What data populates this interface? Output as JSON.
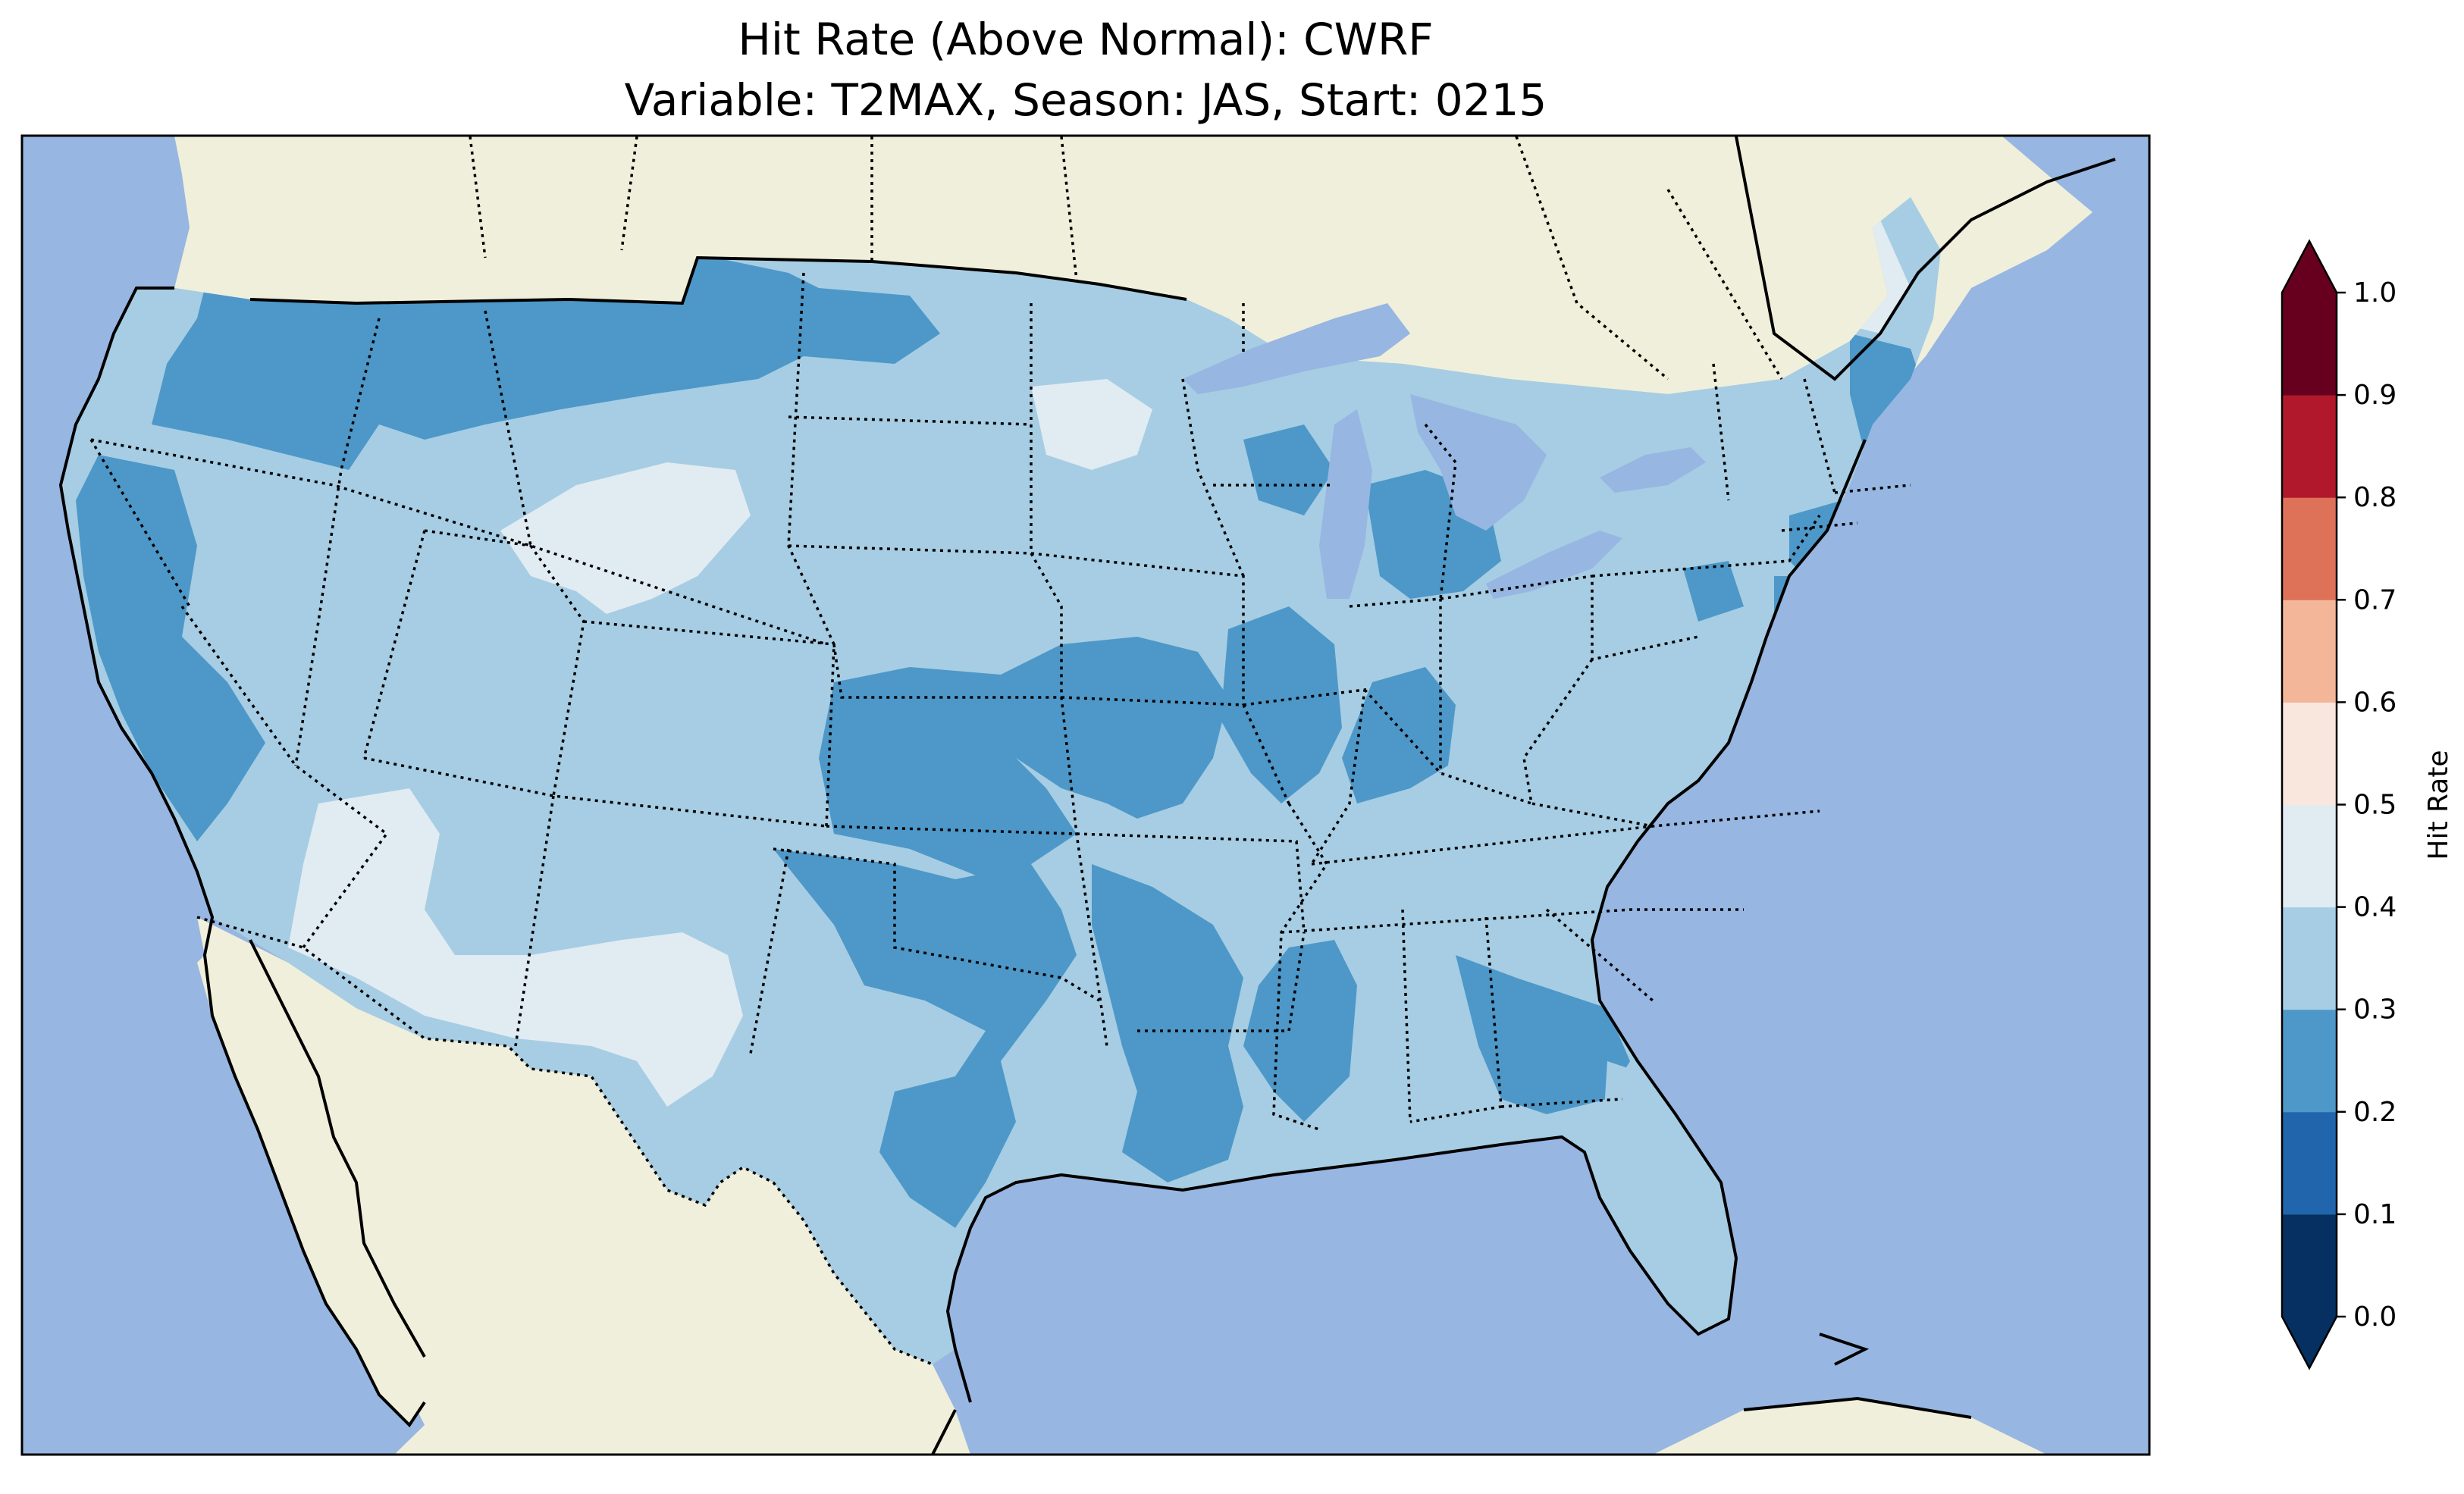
{
  "title_line1": "Hit Rate (Above Normal): CWRF",
  "title_line2": "Variable: T2MAX, Season: JAS, Start: 0215",
  "colors": {
    "ocean": "#97b6e1",
    "land": "#efefdb",
    "lakes": "#97b6e1"
  },
  "colorbar": {
    "label": "Hit Rate",
    "min": 0.0,
    "max": 1.0,
    "extend": "both",
    "ticks": [
      "0.0",
      "0.1",
      "0.2",
      "0.3",
      "0.4",
      "0.5",
      "0.6",
      "0.7",
      "0.8",
      "0.9",
      "1.0"
    ],
    "bins": [
      {
        "from": 0.0,
        "to": 0.1,
        "color": "#053061"
      },
      {
        "from": 0.1,
        "to": 0.2,
        "color": "#2166ac"
      },
      {
        "from": 0.2,
        "to": 0.3,
        "color": "#4d98c8"
      },
      {
        "from": 0.3,
        "to": 0.4,
        "color": "#a6cde3"
      },
      {
        "from": 0.4,
        "to": 0.5,
        "color": "#e1ebf2"
      },
      {
        "from": 0.5,
        "to": 0.6,
        "color": "#f9e6dd"
      },
      {
        "from": 0.6,
        "to": 0.7,
        "color": "#f4b699"
      },
      {
        "from": 0.7,
        "to": 0.8,
        "color": "#dd7259"
      },
      {
        "from": 0.8,
        "to": 0.9,
        "color": "#b2182b"
      },
      {
        "from": 0.9,
        "to": 1.0,
        "color": "#67001f"
      }
    ]
  }
}
